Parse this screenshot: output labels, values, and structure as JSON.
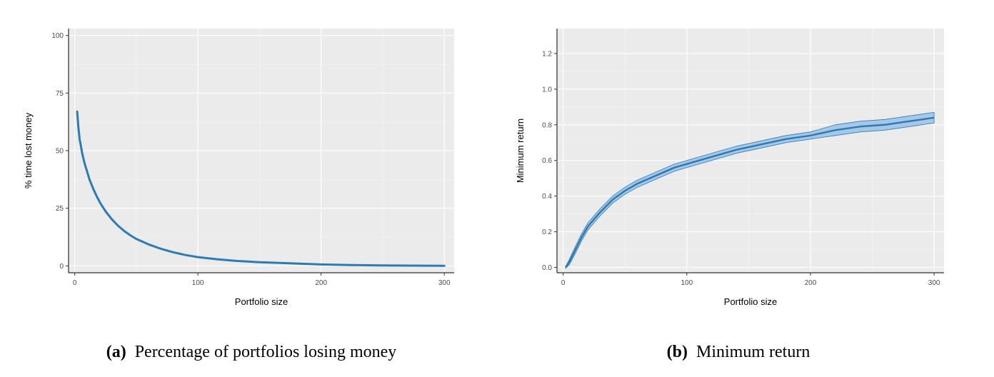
{
  "chart_data": [
    {
      "type": "line",
      "caption_tag": "(a)",
      "caption_text": "Percentage of portfolios losing money",
      "xlabel": "Portfolio size",
      "ylabel": "% time lost money",
      "xlim": [
        -5,
        308
      ],
      "ylim": [
        -3,
        103
      ],
      "xticks": [
        0,
        100,
        200,
        300
      ],
      "yticks": [
        0,
        25,
        50,
        75,
        100
      ],
      "grid": true,
      "color": "#2c7bb6",
      "x": [
        2,
        3,
        4,
        5,
        6,
        8,
        10,
        12,
        15,
        18,
        21,
        25,
        30,
        35,
        40,
        45,
        50,
        60,
        70,
        80,
        90,
        100,
        115,
        130,
        150,
        175,
        200,
        225,
        250,
        275,
        300
      ],
      "y": [
        67,
        60,
        55,
        52,
        49,
        44.5,
        41,
        37.5,
        33.5,
        30,
        27,
        23.7,
        20.3,
        17.5,
        15.2,
        13.3,
        11.7,
        9.3,
        7.4,
        5.9,
        4.7,
        3.8,
        2.9,
        2.2,
        1.6,
        1.1,
        0.6,
        0.35,
        0.2,
        0.1,
        0.05
      ]
    },
    {
      "type": "line",
      "caption_tag": "(b)",
      "caption_text": "Minimum return",
      "xlabel": "Portfolio size",
      "ylabel": "Minimum return",
      "xlim": [
        -5,
        308
      ],
      "ylim": [
        -0.03,
        1.34
      ],
      "xticks": [
        0,
        100,
        200,
        300
      ],
      "yticks": [
        0.0,
        0.2,
        0.4,
        0.6,
        0.8,
        1.0,
        1.2
      ],
      "grid": true,
      "color": "#2c7bb6",
      "band_color": "#a6c8e6",
      "series": [
        {
          "x": [
            2,
            5,
            10,
            15,
            20,
            25,
            30,
            40,
            50,
            60,
            70,
            80,
            90,
            100,
            120,
            140,
            160,
            180,
            200,
            220,
            240,
            260,
            280,
            300
          ],
          "y": [
            0.0,
            0.03,
            0.1,
            0.17,
            0.23,
            0.27,
            0.31,
            0.38,
            0.43,
            0.47,
            0.5,
            0.53,
            0.56,
            0.58,
            0.62,
            0.66,
            0.69,
            0.72,
            0.74,
            0.77,
            0.79,
            0.8,
            0.82,
            0.84
          ],
          "lower": [
            -0.005,
            0.015,
            0.08,
            0.15,
            0.21,
            0.25,
            0.29,
            0.36,
            0.41,
            0.45,
            0.48,
            0.51,
            0.54,
            0.56,
            0.6,
            0.64,
            0.67,
            0.7,
            0.72,
            0.74,
            0.76,
            0.77,
            0.79,
            0.81
          ],
          "upper": [
            0.005,
            0.045,
            0.12,
            0.19,
            0.25,
            0.29,
            0.33,
            0.4,
            0.45,
            0.49,
            0.52,
            0.55,
            0.58,
            0.6,
            0.64,
            0.68,
            0.71,
            0.74,
            0.76,
            0.8,
            0.82,
            0.83,
            0.85,
            0.87
          ]
        }
      ]
    }
  ]
}
